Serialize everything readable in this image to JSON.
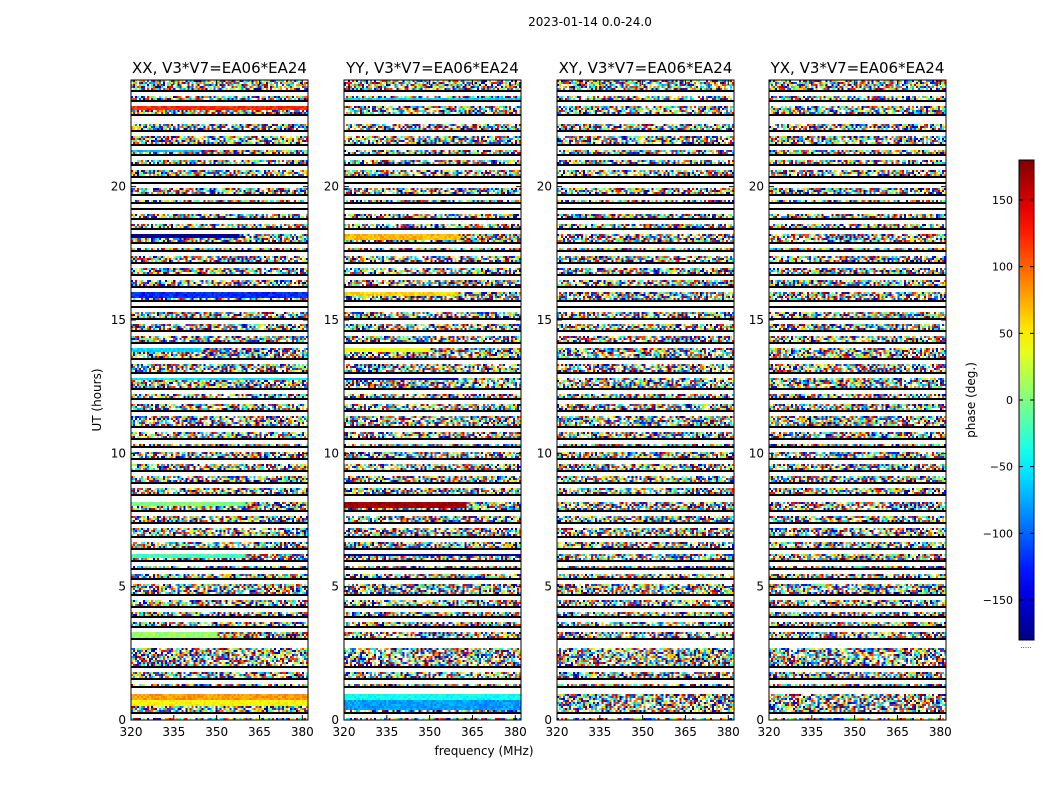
{
  "chart_data": {
    "type": "heatmap",
    "suptitle": "2023-01-14 0.0-24.0",
    "xlabel": "frequency (MHz)",
    "ylabel": "UT (hours)",
    "xlim": [
      320,
      382
    ],
    "ylim": [
      0,
      24
    ],
    "xticks": [
      320,
      335,
      350,
      365,
      380
    ],
    "yticks": [
      0,
      5,
      10,
      15,
      20
    ],
    "colormap": "jet",
    "colorbar": {
      "label": "phase (deg.)",
      "range": [
        -180,
        180
      ],
      "ticks": [
        150,
        100,
        50,
        0,
        -50,
        -100,
        -150
      ],
      "tick_labels": [
        "150",
        "100",
        "50",
        "0",
        "−50",
        "−100",
        "−150"
      ],
      "footer": "....."
    },
    "panels": [
      {
        "title": "XX, V3*V7=EA06*EA24",
        "coherent_bands": [
          {
            "t0": 0.55,
            "t1": 0.75,
            "phase": 45,
            "f_end": 382
          },
          {
            "t0": 0.75,
            "t1": 1.05,
            "phase": 80,
            "f_end": 382
          },
          {
            "t0": 3.1,
            "t1": 3.25,
            "phase": 10,
            "f_end": 350
          },
          {
            "t0": 6.1,
            "t1": 6.35,
            "phase": -20,
            "f_end": 360
          },
          {
            "t0": 8.05,
            "t1": 8.35,
            "phase": 0,
            "f_end": 360
          },
          {
            "t0": 12.8,
            "t1": 13.0,
            "phase": -50,
            "f_end": 382
          },
          {
            "t0": 13.8,
            "t1": 14.0,
            "phase": -60,
            "f_end": 345
          },
          {
            "t0": 15.85,
            "t1": 16.05,
            "phase": -120,
            "f_end": 382
          },
          {
            "t0": 18.1,
            "t1": 18.35,
            "phase": -175,
            "f_end": 358
          },
          {
            "t0": 21.3,
            "t1": 21.45,
            "phase": -70,
            "f_end": 345
          },
          {
            "t0": 22.95,
            "t1": 23.2,
            "phase": 120,
            "f_end": 382
          }
        ]
      },
      {
        "title": "YY, V3*V7=EA06*EA24",
        "coherent_bands": [
          {
            "t0": 0.4,
            "t1": 0.75,
            "phase": -80,
            "f_end": 382
          },
          {
            "t0": 0.75,
            "t1": 1.2,
            "phase": -40,
            "f_end": 382
          },
          {
            "t0": 6.15,
            "t1": 6.35,
            "phase": -175,
            "f_end": 382
          },
          {
            "t0": 8.0,
            "t1": 8.3,
            "phase": 170,
            "f_end": 363
          },
          {
            "t0": 12.75,
            "t1": 12.95,
            "phase": -170,
            "f_end": 360
          },
          {
            "t0": 13.8,
            "t1": 14.0,
            "phase": 40,
            "f_end": 350
          },
          {
            "t0": 15.95,
            "t1": 16.2,
            "phase": 60,
            "f_end": 360
          },
          {
            "t0": 18.0,
            "t1": 18.2,
            "phase": 70,
            "f_end": 360
          },
          {
            "t0": 21.4,
            "t1": 21.55,
            "phase": 140,
            "f_end": 350
          },
          {
            "t0": 23.1,
            "t1": 23.3,
            "phase": -60,
            "f_end": 382
          }
        ]
      },
      {
        "title": "XY, V3*V7=EA06*EA24",
        "coherent_bands": []
      },
      {
        "title": "YX, V3*V7=EA06*EA24",
        "coherent_bands": []
      }
    ],
    "flagged_rows": [
      0.3,
      1.2,
      1.3,
      1.55,
      2.05,
      2.9,
      3.05,
      3.55,
      3.9,
      4.3,
      4.75,
      5.3,
      5.7,
      6.0,
      6.45,
      6.9,
      7.4,
      7.85,
      8.4,
      8.5,
      8.9,
      9.35,
      9.8,
      10.25,
      10.6,
      11.05,
      11.6,
      12.1,
      12.45,
      13.05,
      13.6,
      14.2,
      14.65,
      15.1,
      15.55,
      15.75,
      16.3,
      16.75,
      17.2,
      17.6,
      17.9,
      18.45,
      18.85,
      19.2,
      19.4,
      19.75,
      20.2,
      20.4,
      20.85,
      21.25,
      21.6,
      22.1,
      22.55,
      22.75,
      23.25,
      23.6
    ]
  }
}
